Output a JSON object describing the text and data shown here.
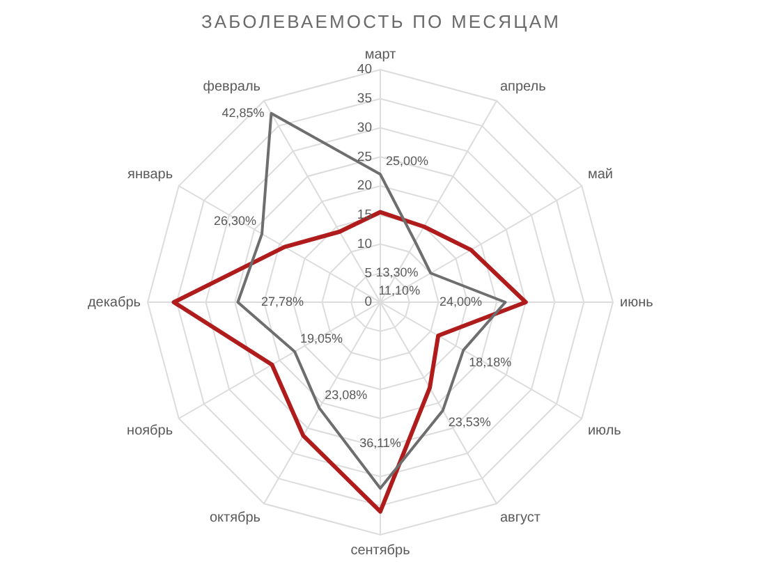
{
  "chart_data": {
    "type": "radar",
    "title": "ЗАБОЛЕВАЕМОСТЬ ПО МЕСЯЦАМ",
    "categories": [
      "март",
      "апрель",
      "май",
      "июнь",
      "июль",
      "август",
      "сентябрь",
      "октябрь",
      "ноябрь",
      "декабрь",
      "январь",
      "февраль"
    ],
    "series": [
      {
        "color": "#6e6e6e",
        "values": [
          22,
          12,
          10,
          21.5,
          16.5,
          21.5,
          32,
          21,
          17,
          24.5,
          23.5,
          37.5
        ]
      },
      {
        "color": "#b01c1c",
        "values": [
          15.5,
          15,
          18,
          25,
          11.5,
          17,
          36,
          26.5,
          21.5,
          35.5,
          19,
          14
        ]
      }
    ],
    "annotations": [
      {
        "text": "25,00%",
        "x": "март"
      },
      {
        "text": "13,30%",
        "x": "апрель"
      },
      {
        "text": "11,10%",
        "x": "май"
      },
      {
        "text": "24,00%",
        "x": "июнь"
      },
      {
        "text": "18,18%",
        "x": "июль"
      },
      {
        "text": "23,53%",
        "x": "август"
      },
      {
        "text": "36,11%",
        "x": "сентябрь"
      },
      {
        "text": "23,08%",
        "x": "октябрь"
      },
      {
        "text": "19,05%",
        "x": "ноябрь"
      },
      {
        "text": "27,78%",
        "x": "декабрь"
      },
      {
        "text": "26,30%",
        "x": "январь"
      },
      {
        "text": "42,85%",
        "x": "февраль"
      }
    ],
    "ylim": [
      0,
      40
    ],
    "yticks": [
      0,
      5,
      10,
      15,
      20,
      25,
      30,
      35,
      40
    ],
    "grid": true
  }
}
